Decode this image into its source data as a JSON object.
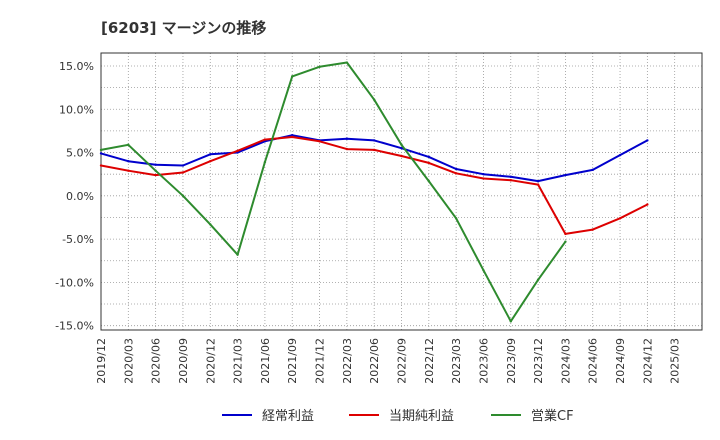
{
  "chart_data": {
    "type": "line",
    "title": "[6203]  マージンの推移",
    "xlabel": "",
    "ylabel": "",
    "ylim": [
      -15.5,
      16.5
    ],
    "y_ticks": [
      15,
      10,
      5,
      0,
      -5,
      -10,
      -15
    ],
    "y_tick_labels": [
      "15.0%",
      "10.0%",
      "5.0%",
      "0.0%",
      "-5.0%",
      "-10.0%",
      "-15.0%"
    ],
    "categories": [
      "2019/12",
      "2020/03",
      "2020/06",
      "2020/09",
      "2020/12",
      "2021/03",
      "2021/06",
      "2021/09",
      "2021/12",
      "2022/03",
      "2022/06",
      "2022/09",
      "2022/12",
      "2023/03",
      "2023/06",
      "2023/09",
      "2023/12",
      "2024/03",
      "2024/06",
      "2024/09",
      "2024/12",
      "2025/03"
    ],
    "grid": true,
    "legend_position": "bottom",
    "series": [
      {
        "name": "経常利益",
        "color": "#0000cc",
        "values": [
          4.9,
          4.0,
          3.6,
          3.5,
          4.8,
          5.0,
          6.3,
          7.0,
          6.4,
          6.6,
          6.4,
          5.5,
          4.5,
          3.1,
          2.5,
          2.2,
          1.7,
          2.4,
          3.0,
          4.7,
          6.4,
          null
        ]
      },
      {
        "name": "当期純利益",
        "color": "#dd0000",
        "values": [
          3.5,
          2.9,
          2.4,
          2.7,
          4.0,
          5.2,
          6.5,
          6.8,
          6.3,
          5.4,
          5.3,
          4.6,
          3.8,
          2.6,
          2.0,
          1.8,
          1.3,
          -4.4,
          -3.9,
          -2.6,
          -1.0,
          null
        ]
      },
      {
        "name": "営業CF",
        "color": "#2e8b2e",
        "values": [
          5.3,
          5.9,
          2.9,
          0.0,
          -3.3,
          -6.8,
          3.9,
          13.8,
          14.9,
          15.4,
          11.1,
          5.9,
          1.7,
          -2.6,
          -8.6,
          -14.5,
          -9.7,
          -5.3,
          null,
          null,
          null,
          null
        ]
      }
    ]
  }
}
